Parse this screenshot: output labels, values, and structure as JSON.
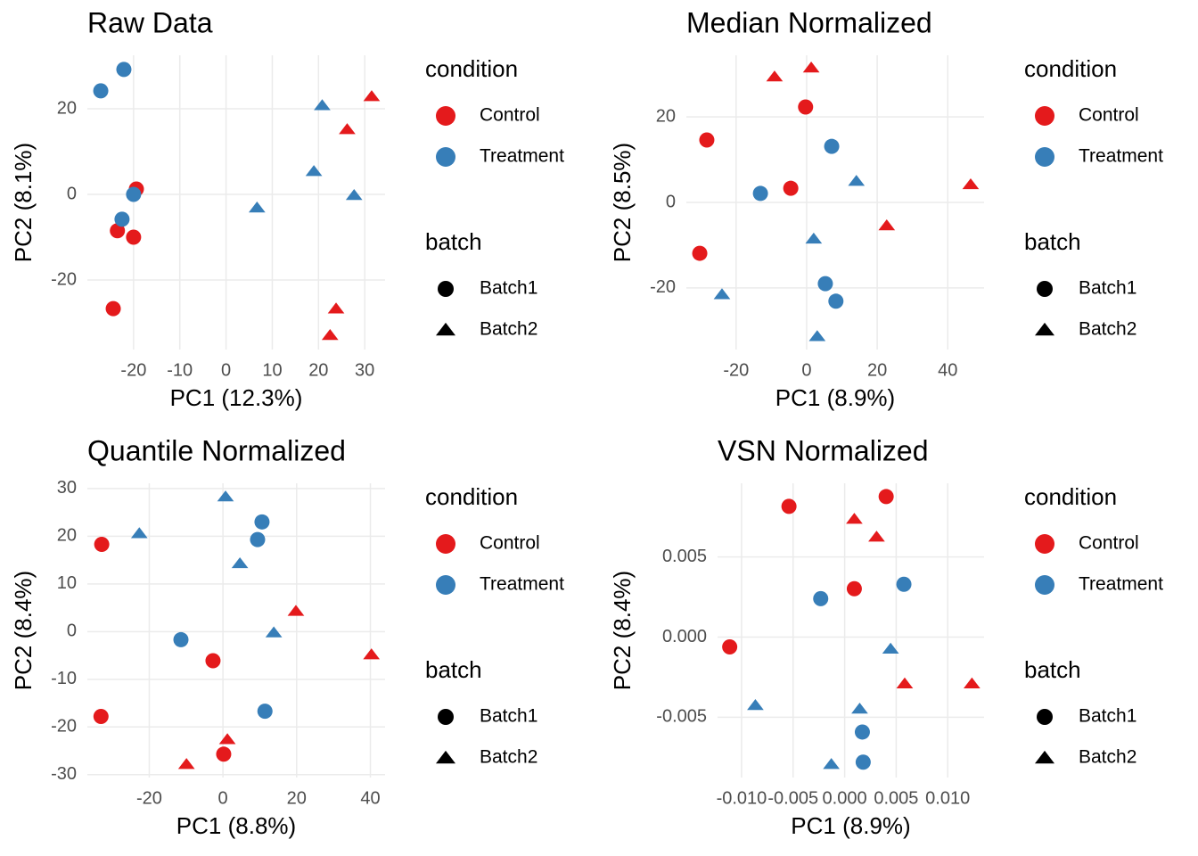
{
  "chart_data": [
    {
      "type": "scatter",
      "title": "Raw Data",
      "x_label": "PC1 (12.3%)",
      "y_label": "PC2 (8.1%)",
      "xlim": [
        -30,
        34.4
      ],
      "ylim": [
        -36.25,
        32.5
      ],
      "xticks": [
        -20,
        -10,
        0,
        10,
        20,
        30
      ],
      "yticks": [
        -20,
        0,
        20
      ],
      "grid": true,
      "legend": {
        "condition": {
          "title": "condition",
          "items": [
            {
              "name": "Control",
              "color": "#e41a1c"
            },
            {
              "name": "Treatment",
              "color": "#377eb8"
            }
          ]
        },
        "batch": {
          "title": "batch",
          "items": [
            {
              "name": "Batch1",
              "shape": "circle"
            },
            {
              "name": "Batch2",
              "shape": "triangle"
            }
          ]
        }
      },
      "series": [
        {
          "color": "#e41a1c",
          "shape": "circle",
          "x": [
            -19.4,
            -23.5,
            -20,
            -24.4
          ],
          "y": [
            1.25,
            -8.5,
            -10,
            -26.7
          ]
        },
        {
          "color": "#e41a1c",
          "shape": "triangle",
          "x": [
            31.5,
            26.2,
            23.8,
            22.5
          ],
          "y": [
            22.9,
            15.2,
            -26.7,
            -32.9
          ]
        },
        {
          "color": "#377eb8",
          "shape": "circle",
          "x": [
            -22.1,
            -27.1,
            -20,
            -22.5
          ],
          "y": [
            29.2,
            24.2,
            0,
            -5.8
          ]
        },
        {
          "color": "#377eb8",
          "shape": "triangle",
          "x": [
            20.8,
            19.0,
            27.7,
            6.7
          ],
          "y": [
            20.8,
            5.4,
            -0.2,
            -3.1
          ]
        }
      ]
    },
    {
      "type": "scatter",
      "title": "Median Normalized",
      "x_label": "PC1 (8.9%)",
      "y_label": "PC2 (8.5%)",
      "xlim": [
        -34.1,
        50.3
      ],
      "ylim": [
        -34.4,
        34.4
      ],
      "xticks": [
        -20,
        0,
        20,
        40
      ],
      "yticks": [
        -20,
        0,
        20
      ],
      "grid": true,
      "legend": {
        "condition": {
          "title": "condition",
          "items": [
            {
              "name": "Control",
              "color": "#e41a1c"
            },
            {
              "name": "Treatment",
              "color": "#377eb8"
            }
          ]
        },
        "batch": {
          "title": "batch",
          "items": [
            {
              "name": "Batch1",
              "shape": "circle"
            },
            {
              "name": "Batch2",
              "shape": "triangle"
            }
          ]
        }
      },
      "series": [
        {
          "color": "#e41a1c",
          "shape": "circle",
          "x": [
            -28.3,
            -0.3,
            -4.5,
            -30.3
          ],
          "y": [
            14.6,
            22.3,
            3.3,
            -11.9
          ]
        },
        {
          "color": "#e41a1c",
          "shape": "triangle",
          "x": [
            -9.1,
            1.3,
            46.5,
            22.7
          ],
          "y": [
            29.4,
            31.5,
            4.2,
            -5.4
          ]
        },
        {
          "color": "#377eb8",
          "shape": "circle",
          "x": [
            7.1,
            -13.1,
            5.3,
            8.3
          ],
          "y": [
            13.1,
            2.1,
            -19,
            -23.1
          ]
        },
        {
          "color": "#377eb8",
          "shape": "triangle",
          "x": [
            14.1,
            2,
            -24,
            3
          ],
          "y": [
            5,
            -8.5,
            -21.5,
            -31.3
          ]
        }
      ]
    },
    {
      "type": "scatter",
      "title": "Quantile Normalized",
      "x_label": "PC1 (8.8%)",
      "y_label": "PC2 (8.4%)",
      "xlim": [
        -36.8,
        44
      ],
      "ylim": [
        -30.6,
        31.1
      ],
      "xticks": [
        -20,
        0,
        20,
        40
      ],
      "yticks": [
        -30,
        -20,
        -10,
        0,
        10,
        20,
        30
      ],
      "grid": true,
      "legend": {
        "condition": {
          "title": "condition",
          "items": [
            {
              "name": "Control",
              "color": "#e41a1c"
            },
            {
              "name": "Treatment",
              "color": "#377eb8"
            }
          ]
        },
        "batch": {
          "title": "batch",
          "items": [
            {
              "name": "Batch1",
              "shape": "circle"
            },
            {
              "name": "Batch2",
              "shape": "triangle"
            }
          ]
        }
      },
      "series": [
        {
          "color": "#e41a1c",
          "shape": "circle",
          "x": [
            -32.9,
            -2.7,
            -33.1,
            0.2
          ],
          "y": [
            18.3,
            -6.1,
            -17.8,
            -25.7
          ]
        },
        {
          "color": "#e41a1c",
          "shape": "triangle",
          "x": [
            19.8,
            40.3,
            1.2,
            -9.9
          ],
          "y": [
            4.3,
            -4.8,
            -22.6,
            -27.8
          ]
        },
        {
          "color": "#377eb8",
          "shape": "circle",
          "x": [
            10.6,
            9.4,
            -11.4,
            11.4
          ],
          "y": [
            23,
            19.3,
            -1.7,
            -16.7
          ]
        },
        {
          "color": "#377eb8",
          "shape": "triangle",
          "x": [
            0.7,
            -22.7,
            4.6,
            13.8
          ],
          "y": [
            28.3,
            20.6,
            14.3,
            -0.2
          ]
        }
      ]
    },
    {
      "type": "scatter",
      "title": "VSN Normalized",
      "x_label": "PC1 (8.9%)",
      "y_label": "PC2 (8.4%)",
      "xlim": [
        -0.01233,
        0.01353
      ],
      "ylim": [
        -0.00876,
        0.0096
      ],
      "xticks": [
        {
          "value": -0.01,
          "label": "-0.010"
        },
        {
          "value": -0.005,
          "label": "-0.005"
        },
        {
          "value": 0,
          "label": "0.000"
        },
        {
          "value": 0.005,
          "label": "0.005"
        },
        {
          "value": 0.01,
          "label": "0.010"
        }
      ],
      "yticks": [
        {
          "value": -0.005,
          "label": "-0.005"
        },
        {
          "value": 0,
          "label": "0.000"
        },
        {
          "value": 0.005,
          "label": "0.005"
        }
      ],
      "grid": true,
      "legend": {
        "condition": {
          "title": "condition",
          "items": [
            {
              "name": "Control",
              "color": "#e41a1c"
            },
            {
              "name": "Treatment",
              "color": "#377eb8"
            }
          ]
        },
        "batch": {
          "title": "batch",
          "items": [
            {
              "name": "Batch1",
              "shape": "circle"
            },
            {
              "name": "Batch2",
              "shape": "triangle"
            }
          ]
        }
      },
      "series": [
        {
          "color": "#e41a1c",
          "shape": "circle",
          "x": [
            0.00403,
            -0.0054,
            0.00094,
            -0.01115
          ],
          "y": [
            0.00877,
            0.00816,
            0.00302,
            -0.00061
          ]
        },
        {
          "color": "#e41a1c",
          "shape": "triangle",
          "x": [
            0.00094,
            0.0031,
            0.00583,
            0.01235
          ],
          "y": [
            0.00737,
            0.00626,
            -0.0029,
            -0.0029
          ]
        },
        {
          "color": "#377eb8",
          "shape": "circle",
          "x": [
            0.00575,
            -0.00232,
            0.00172,
            0.0018
          ],
          "y": [
            0.0033,
            0.0024,
            -0.00592,
            -0.0078
          ]
        },
        {
          "color": "#377eb8",
          "shape": "triangle",
          "x": [
            0.00446,
            -0.00866,
            0.00146,
            -0.00129
          ],
          "y": [
            -0.00073,
            -0.00425,
            -0.00447,
            -0.00793
          ]
        }
      ]
    }
  ]
}
